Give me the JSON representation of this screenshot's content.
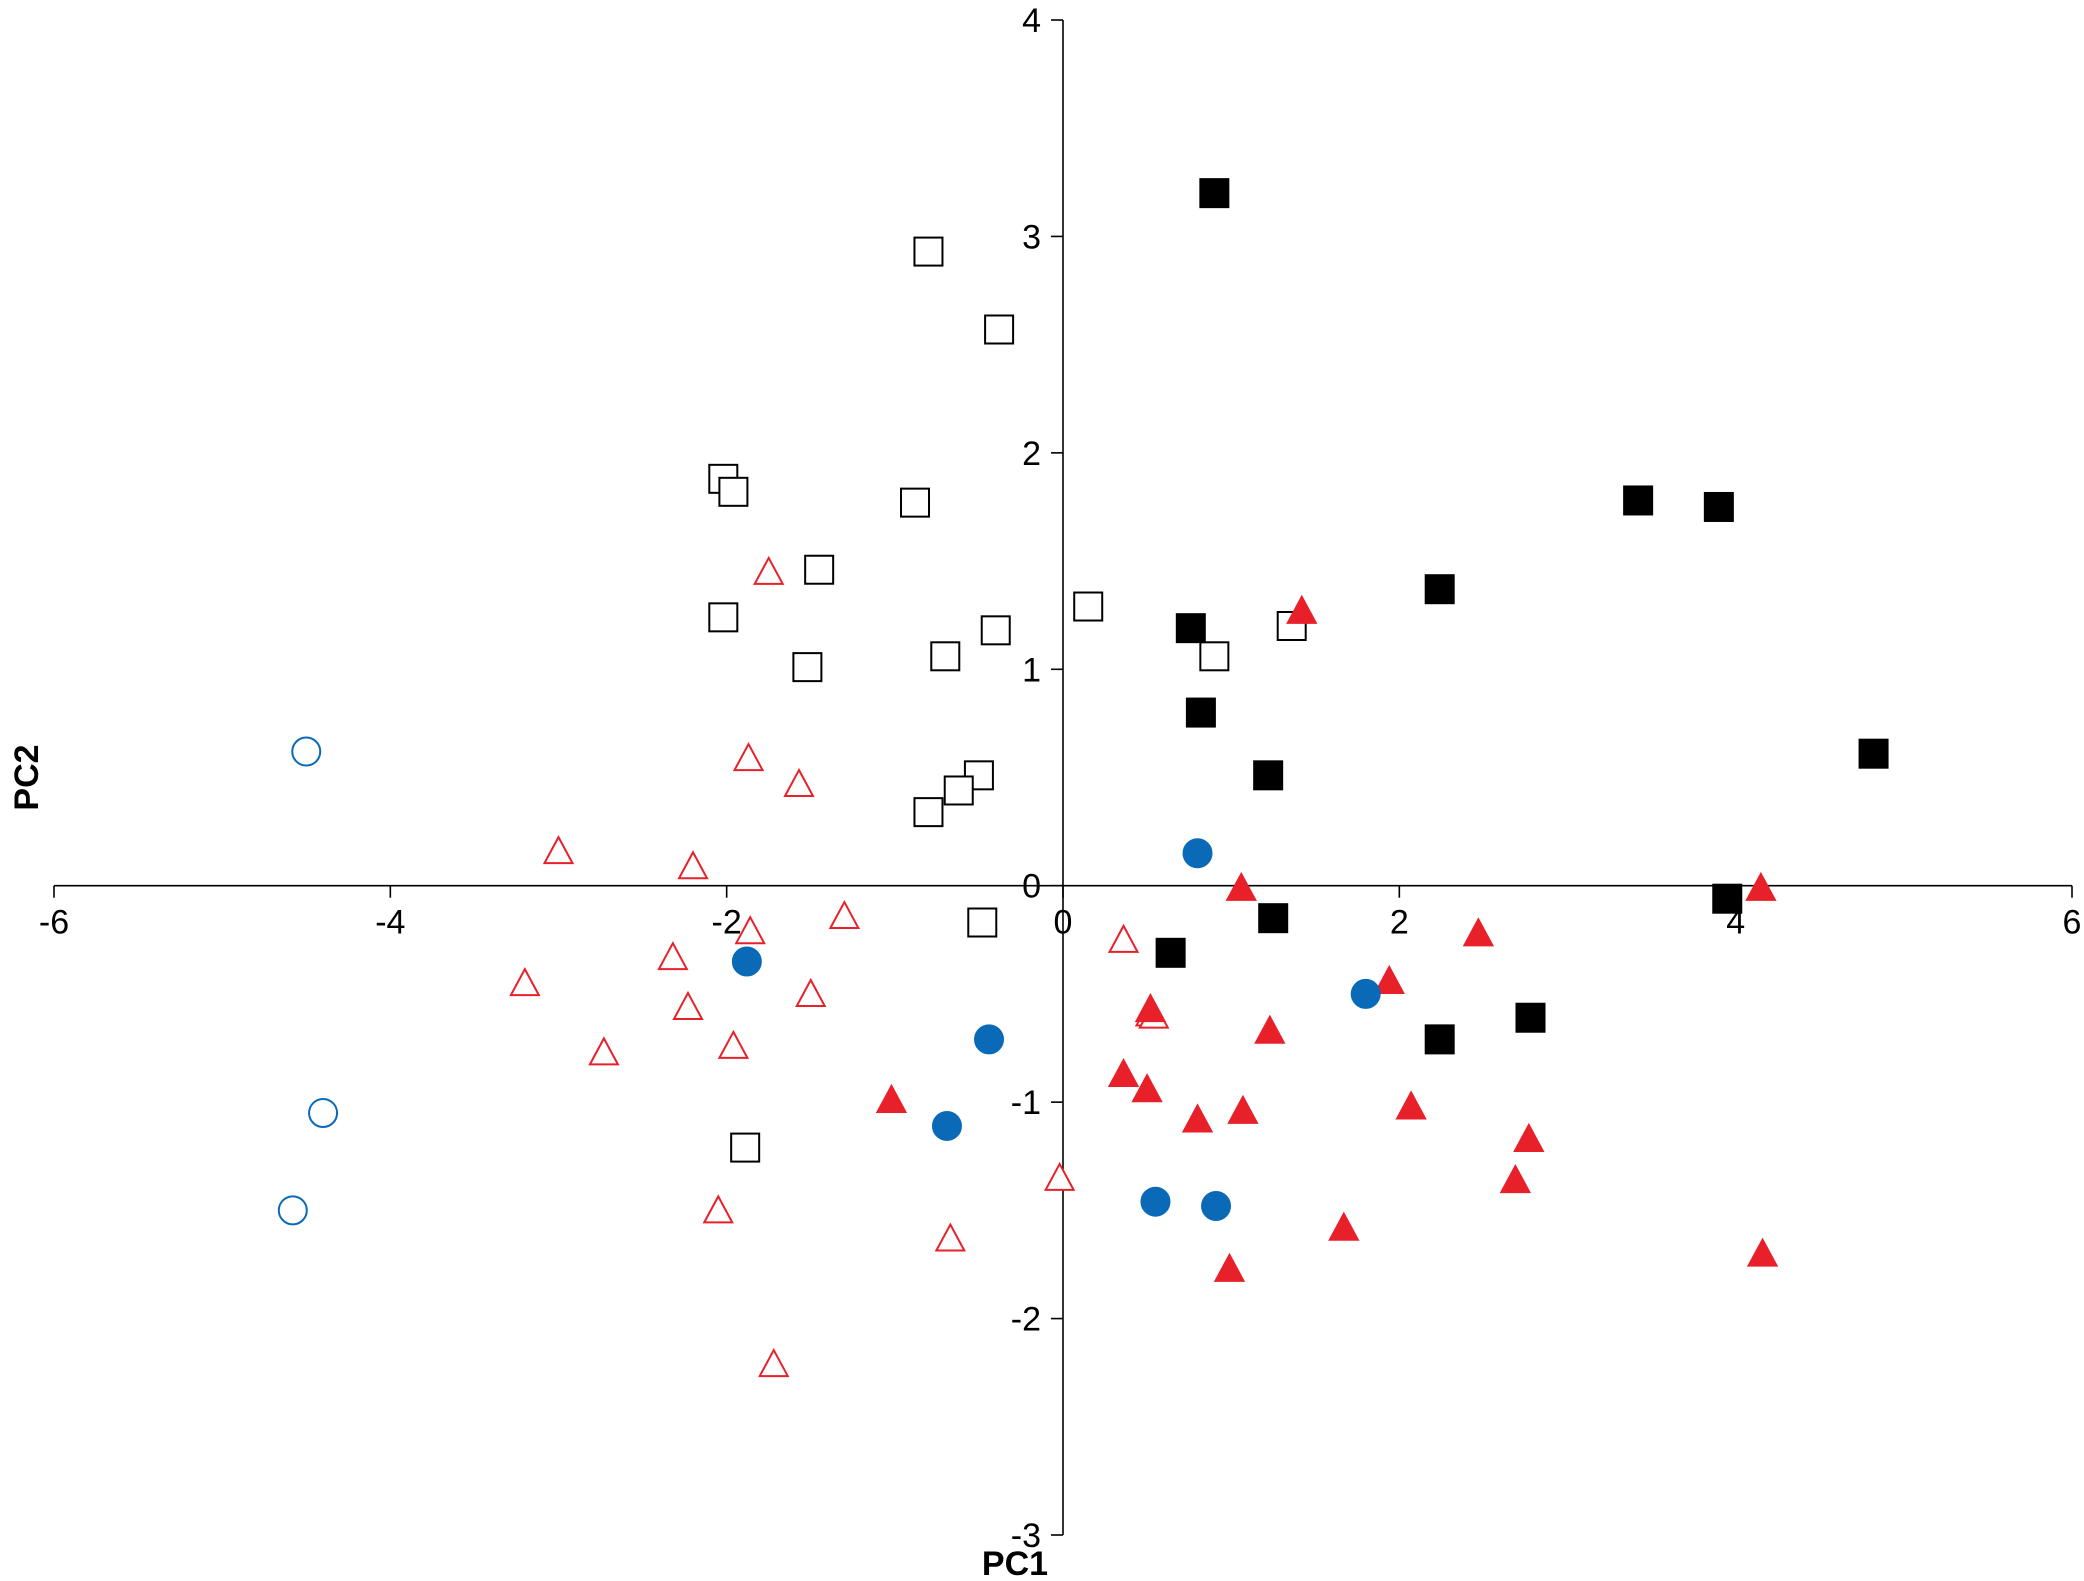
{
  "chart_data": {
    "type": "scatter",
    "title": "",
    "xlabel": "PC1",
    "ylabel": "PC2",
    "xlim": [
      -6,
      6
    ],
    "ylim": [
      -3,
      4
    ],
    "xticks": [
      "-6",
      "-4",
      "-2",
      "0",
      "2",
      "4",
      "6"
    ],
    "yticks": [
      "-3",
      "-2",
      "-1",
      "0",
      "1",
      "2",
      "3",
      "4"
    ],
    "grid": false,
    "legend": "none",
    "series": [
      {
        "marker": "square-open",
        "color": "#000000",
        "points": [
          [
            -0.8,
            2.93
          ],
          [
            -0.38,
            2.57
          ],
          [
            -2.02,
            1.88
          ],
          [
            -1.96,
            1.82
          ],
          [
            -0.88,
            1.77
          ],
          [
            -1.45,
            1.46
          ],
          [
            0.15,
            1.29
          ],
          [
            -2.02,
            1.24
          ],
          [
            -0.4,
            1.18
          ],
          [
            1.36,
            1.2
          ],
          [
            0.9,
            1.06
          ],
          [
            -0.7,
            1.06
          ],
          [
            -1.52,
            1.01
          ],
          [
            -0.5,
            0.51
          ],
          [
            -0.62,
            0.44
          ],
          [
            -0.8,
            0.34
          ],
          [
            -0.48,
            -0.17
          ],
          [
            -1.89,
            -1.21
          ]
        ]
      },
      {
        "marker": "square-filled",
        "color": "#000000",
        "points": [
          [
            0.9,
            3.2
          ],
          [
            3.42,
            1.78
          ],
          [
            3.9,
            1.75
          ],
          [
            2.24,
            1.37
          ],
          [
            0.76,
            1.19
          ],
          [
            0.82,
            0.8
          ],
          [
            1.22,
            0.51
          ],
          [
            4.82,
            0.61
          ],
          [
            3.95,
            -0.06
          ],
          [
            1.25,
            -0.15
          ],
          [
            0.64,
            -0.31
          ],
          [
            2.78,
            -0.61
          ],
          [
            2.24,
            -0.71
          ]
        ]
      },
      {
        "marker": "triangle-open",
        "color": "#e8202a",
        "points": [
          [
            -1.75,
            1.44
          ],
          [
            -1.87,
            0.58
          ],
          [
            -1.57,
            0.46
          ],
          [
            -3.0,
            0.15
          ],
          [
            -2.2,
            0.08
          ],
          [
            -1.86,
            -0.22
          ],
          [
            -1.3,
            -0.15
          ],
          [
            -2.32,
            -0.34
          ],
          [
            -3.2,
            -0.46
          ],
          [
            -1.5,
            -0.51
          ],
          [
            -2.23,
            -0.57
          ],
          [
            -1.96,
            -0.75
          ],
          [
            -2.73,
            -0.78
          ],
          [
            0.36,
            -0.26
          ],
          [
            0.52,
            -0.6
          ],
          [
            0.54,
            -0.61
          ],
          [
            -0.02,
            -1.36
          ],
          [
            -2.05,
            -1.51
          ],
          [
            -0.67,
            -1.64
          ],
          [
            -1.72,
            -2.22
          ]
        ]
      },
      {
        "marker": "triangle-filled",
        "color": "#e8202a",
        "points": [
          [
            1.42,
            1.26
          ],
          [
            1.06,
            -0.02
          ],
          [
            4.15,
            -0.02
          ],
          [
            2.47,
            -0.23
          ],
          [
            1.94,
            -0.45
          ],
          [
            0.52,
            -0.58
          ],
          [
            1.23,
            -0.68
          ],
          [
            0.36,
            -0.88
          ],
          [
            0.5,
            -0.95
          ],
          [
            -1.02,
            -1.0
          ],
          [
            2.07,
            -1.03
          ],
          [
            1.07,
            -1.05
          ],
          [
            0.8,
            -1.09
          ],
          [
            2.77,
            -1.18
          ],
          [
            2.69,
            -1.37
          ],
          [
            1.67,
            -1.59
          ],
          [
            0.99,
            -1.78
          ],
          [
            4.16,
            -1.71
          ]
        ]
      },
      {
        "marker": "circle-open",
        "color": "#0b6ab7",
        "points": [
          [
            -4.5,
            0.62
          ],
          [
            -4.4,
            -1.05
          ],
          [
            -4.58,
            -1.5
          ]
        ]
      },
      {
        "marker": "circle-filled",
        "color": "#0b6ab7",
        "points": [
          [
            0.8,
            0.15
          ],
          [
            -1.88,
            -0.35
          ],
          [
            1.8,
            -0.5
          ],
          [
            -0.44,
            -0.71
          ],
          [
            -0.69,
            -1.11
          ],
          [
            0.55,
            -1.46
          ],
          [
            0.91,
            -1.48
          ]
        ]
      }
    ]
  }
}
